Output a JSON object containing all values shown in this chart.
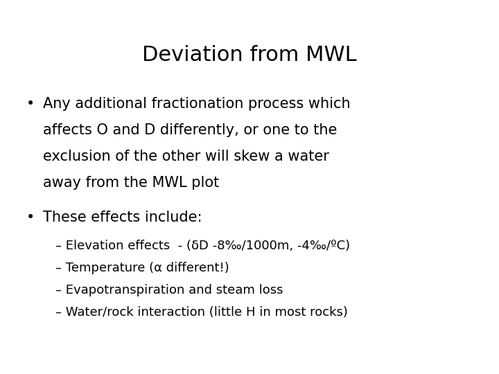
{
  "title": "Deviation from MWL",
  "title_fontsize": 22,
  "background_color": "#ffffff",
  "text_color": "#000000",
  "bullet1_line1": "Any additional fractionation process which",
  "bullet1_line2": "affects O and D differently, or one to the",
  "bullet1_line3": "exclusion of the other will skew a water",
  "bullet1_line4": "away from the MWL plot",
  "bullet2": "These effects include:",
  "sub1": "– Elevation effects  - (δD -8‰/1000m, -4‰/ºC)",
  "sub2": "– Temperature (α different!)",
  "sub3": "– Evapotranspiration and steam loss",
  "sub4": "– Water/rock interaction (little H in most rocks)",
  "body_fontsize": 15,
  "sub_fontsize": 13,
  "bullet_fontsize": 15
}
